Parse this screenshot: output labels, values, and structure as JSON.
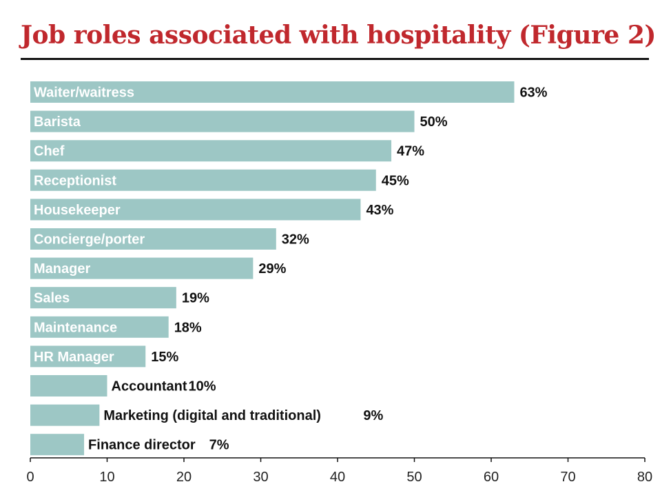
{
  "colors": {
    "bar": "#9dc7c5",
    "title": "#c0282d",
    "axis": "#111111"
  },
  "chart_data": {
    "type": "bar",
    "orientation": "horizontal",
    "title": "Job roles associated with hospitality (Figure 2)",
    "xlim": [
      0,
      80
    ],
    "x_ticks": [
      "0",
      "10",
      "20",
      "30",
      "40",
      "50",
      "60",
      "70",
      "80"
    ],
    "grid": false,
    "categories": [
      "Waiter/waitress",
      "Barista",
      "Chef",
      "Receptionist",
      "Housekeeper",
      "Concierge/porter",
      "Manager",
      "Sales",
      "Maintenance",
      "HR Manager",
      "Accountant",
      "Marketing (digital and traditional)",
      "Finance director"
    ],
    "values": [
      63,
      50,
      47,
      45,
      43,
      32,
      29,
      19,
      18,
      15,
      10,
      9,
      7
    ],
    "value_labels": [
      "63%",
      "50%",
      "47%",
      "45%",
      "43%",
      "32%",
      "29%",
      "19%",
      "18%",
      "15%",
      "10%",
      "9%",
      "7%"
    ]
  }
}
